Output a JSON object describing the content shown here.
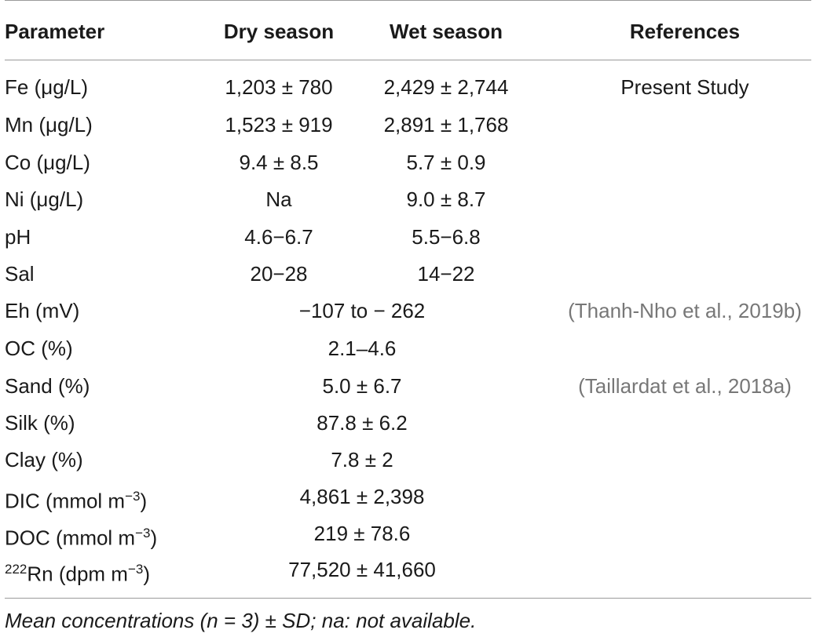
{
  "table": {
    "headers": {
      "parameter": "Parameter",
      "dry": "Dry season",
      "wet": "Wet season",
      "references": "References"
    },
    "rows": [
      {
        "parameter": "Fe (μg/L)",
        "dry": "1,203 ± 780",
        "wet": "2,429 ± 2,744",
        "reference": "Present Study"
      },
      {
        "parameter": "Mn (μg/L)",
        "dry": "1,523 ± 919",
        "wet": "2,891 ± 1,768"
      },
      {
        "parameter": "Co (μg/L)",
        "dry": "9.4 ± 8.5",
        "wet": "5.7 ± 0.9"
      },
      {
        "parameter": "Ni (μg/L)",
        "dry": "Na",
        "wet": "9.0 ± 8.7"
      },
      {
        "parameter": "pH",
        "dry": "4.6−6.7",
        "wet": "5.5−6.8"
      },
      {
        "parameter": "Sal",
        "dry": "20−28",
        "wet": "14−22"
      },
      {
        "parameter": "Eh (mV)",
        "both": "−107 to − 262",
        "reference": "(Thanh-Nho et al., 2019b)"
      },
      {
        "parameter": "OC (%)",
        "both": "2.1–4.6"
      },
      {
        "parameter": "Sand (%)",
        "both": "5.0 ± 6.7",
        "reference": "(Taillardat et al., 2018a)"
      },
      {
        "parameter": "Silk (%)",
        "both": "87.8 ± 6.2"
      },
      {
        "parameter": "Clay (%)",
        "both": "7.8 ± 2"
      },
      {
        "parameter": "DIC (mmol m",
        "param_sup": "−3",
        "param_tail": ")",
        "both": "4,861 ± 2,398"
      },
      {
        "parameter": "DOC (mmol m",
        "param_sup": "−3",
        "param_tail": ")",
        "both": "219 ± 78.6"
      },
      {
        "param_pre_sup": "222",
        "parameter": "Rn (dpm m",
        "param_sup": "−3",
        "param_tail": ")",
        "both": "77,520 ± 41,660"
      }
    ],
    "footnote": "Mean concentrations (n = 3) ± SD; na: not available."
  }
}
